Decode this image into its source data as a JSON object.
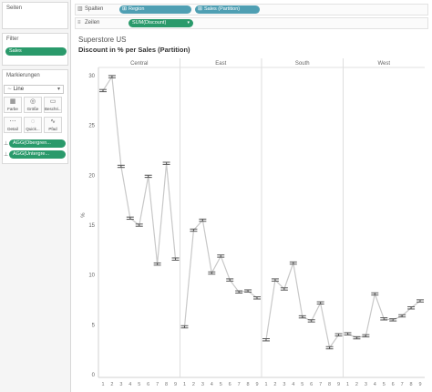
{
  "left_panel": {
    "pages_title": "Seiten",
    "filters_title": "Filter",
    "filters": [
      "Sales"
    ],
    "marks_title": "Markierungen",
    "mark_type": "Line",
    "buttons": [
      {
        "label": "Farbe",
        "icon": "palette-icon",
        "glyph": "▦"
      },
      {
        "label": "Größe",
        "icon": "size-icon",
        "glyph": "◎"
      },
      {
        "label": "Beschri...",
        "icon": "text-label-icon",
        "glyph": "▭"
      },
      {
        "label": "Detail",
        "icon": "detail-icon",
        "glyph": "⋯"
      },
      {
        "label": "Quick...",
        "icon": "tooltip-icon",
        "glyph": "◌"
      },
      {
        "label": "Pfad",
        "icon": "path-icon",
        "glyph": "∿"
      }
    ],
    "mark_pills": [
      "AGG(Obergren...",
      "AGG(Untergre..."
    ]
  },
  "shelves": {
    "columns_label": "Spalten",
    "columns_pills": [
      "Region",
      "Sales (Partition)"
    ],
    "rows_label": "Zeilen",
    "rows_pill": "SUM(Discount)"
  },
  "chart_data": {
    "type": "line",
    "title": "Superstore US",
    "subtitle": "Discount in % per Sales (Partition)",
    "ylabel": "%",
    "ylim": [
      0,
      30
    ],
    "yticks": [
      0,
      5,
      10,
      15,
      20,
      25,
      30
    ],
    "regions": [
      {
        "name": "Central",
        "values": [
          28.5,
          29.9,
          20.9,
          15.7,
          15.0,
          19.9,
          11.1,
          21.2,
          11.6
        ]
      },
      {
        "name": "East",
        "values": [
          4.8,
          14.5,
          15.5,
          10.2,
          11.9,
          9.5,
          8.3,
          8.4,
          7.7
        ]
      },
      {
        "name": "South",
        "values": [
          3.5,
          9.5,
          8.6,
          11.2,
          5.8,
          5.4,
          7.2,
          2.7,
          4.0
        ]
      },
      {
        "name": "West",
        "values": [
          4.1,
          3.7,
          3.9,
          8.1,
          5.6,
          5.5,
          5.9,
          6.7,
          7.4
        ]
      }
    ],
    "x_tick_labels": [
      "1",
      "2",
      "3",
      "4",
      "5",
      "6",
      "7",
      "8",
      "9"
    ],
    "line_color": "#c8c8c8",
    "marker_color": "#555555"
  }
}
